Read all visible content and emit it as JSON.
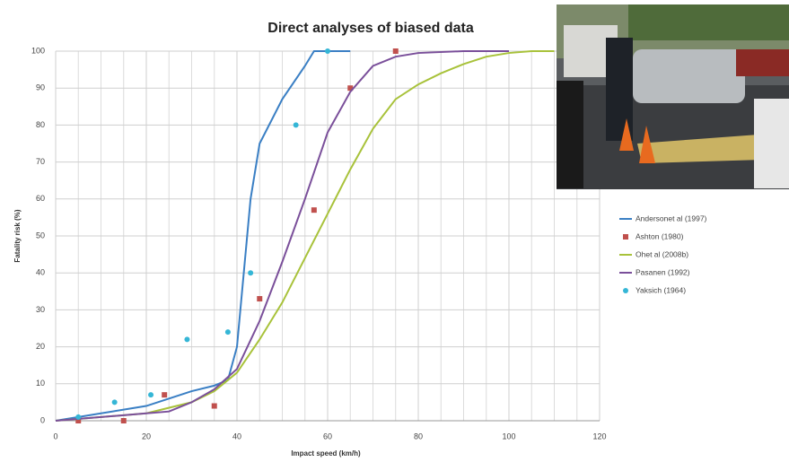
{
  "chart_data": {
    "type": "line",
    "title": "Direct analyses of biased data",
    "x_label": "Impact speed (km/h)",
    "y_label": "Fatality risk (%)",
    "xlim": [
      0,
      120
    ],
    "xticks": [
      0,
      20,
      40,
      60,
      80,
      100,
      120
    ],
    "ylim": [
      0,
      100
    ],
    "yticks": [
      0,
      10,
      20,
      30,
      40,
      50,
      60,
      70,
      80,
      90,
      100
    ],
    "grid": true,
    "legend": "right",
    "series": [
      {
        "name": "Andersonet al (1997)",
        "color": "#3a7fc4",
        "mode": "line",
        "x": [
          0,
          5,
          10,
          15,
          20,
          25,
          30,
          35,
          38,
          40,
          43,
          45,
          50,
          55,
          57,
          65
        ],
        "values": [
          0,
          1,
          2,
          3,
          4,
          6,
          8,
          9.5,
          11,
          20,
          60,
          75,
          87,
          96,
          100,
          100
        ]
      },
      {
        "name": "Ashton (1980)",
        "color": "#c0504d",
        "mode": "square",
        "x": [
          5,
          15,
          24,
          35,
          45,
          57,
          65,
          75
        ],
        "values": [
          0,
          0,
          7,
          4,
          33,
          57,
          90,
          100
        ]
      },
      {
        "name": "Ohet al (2008b)",
        "color": "#a8c23a",
        "mode": "line",
        "x": [
          0,
          10,
          20,
          30,
          35,
          40,
          45,
          50,
          55,
          60,
          65,
          70,
          75,
          80,
          85,
          90,
          95,
          100,
          105,
          110
        ],
        "values": [
          0,
          1,
          2,
          5,
          8,
          13,
          22,
          32,
          44,
          56,
          68,
          79,
          87,
          91,
          94,
          96.5,
          98.5,
          99.5,
          100,
          100
        ]
      },
      {
        "name": "Pasanen (1992)",
        "color": "#7a4f9a",
        "mode": "line",
        "x": [
          0,
          10,
          20,
          25,
          30,
          35,
          40,
          45,
          50,
          55,
          60,
          65,
          70,
          75,
          80,
          90,
          100
        ],
        "values": [
          0,
          1,
          2,
          2.5,
          5,
          8.5,
          14,
          27,
          43,
          60,
          78,
          89,
          96,
          98.5,
          99.5,
          100,
          100
        ]
      },
      {
        "name": "Yaksich (1964)",
        "color": "#35b6d6",
        "mode": "circle",
        "x": [
          5,
          13,
          21,
          29,
          38,
          43,
          53,
          60
        ],
        "values": [
          1,
          5,
          7,
          22,
          24,
          40,
          80,
          100
        ]
      }
    ]
  }
}
